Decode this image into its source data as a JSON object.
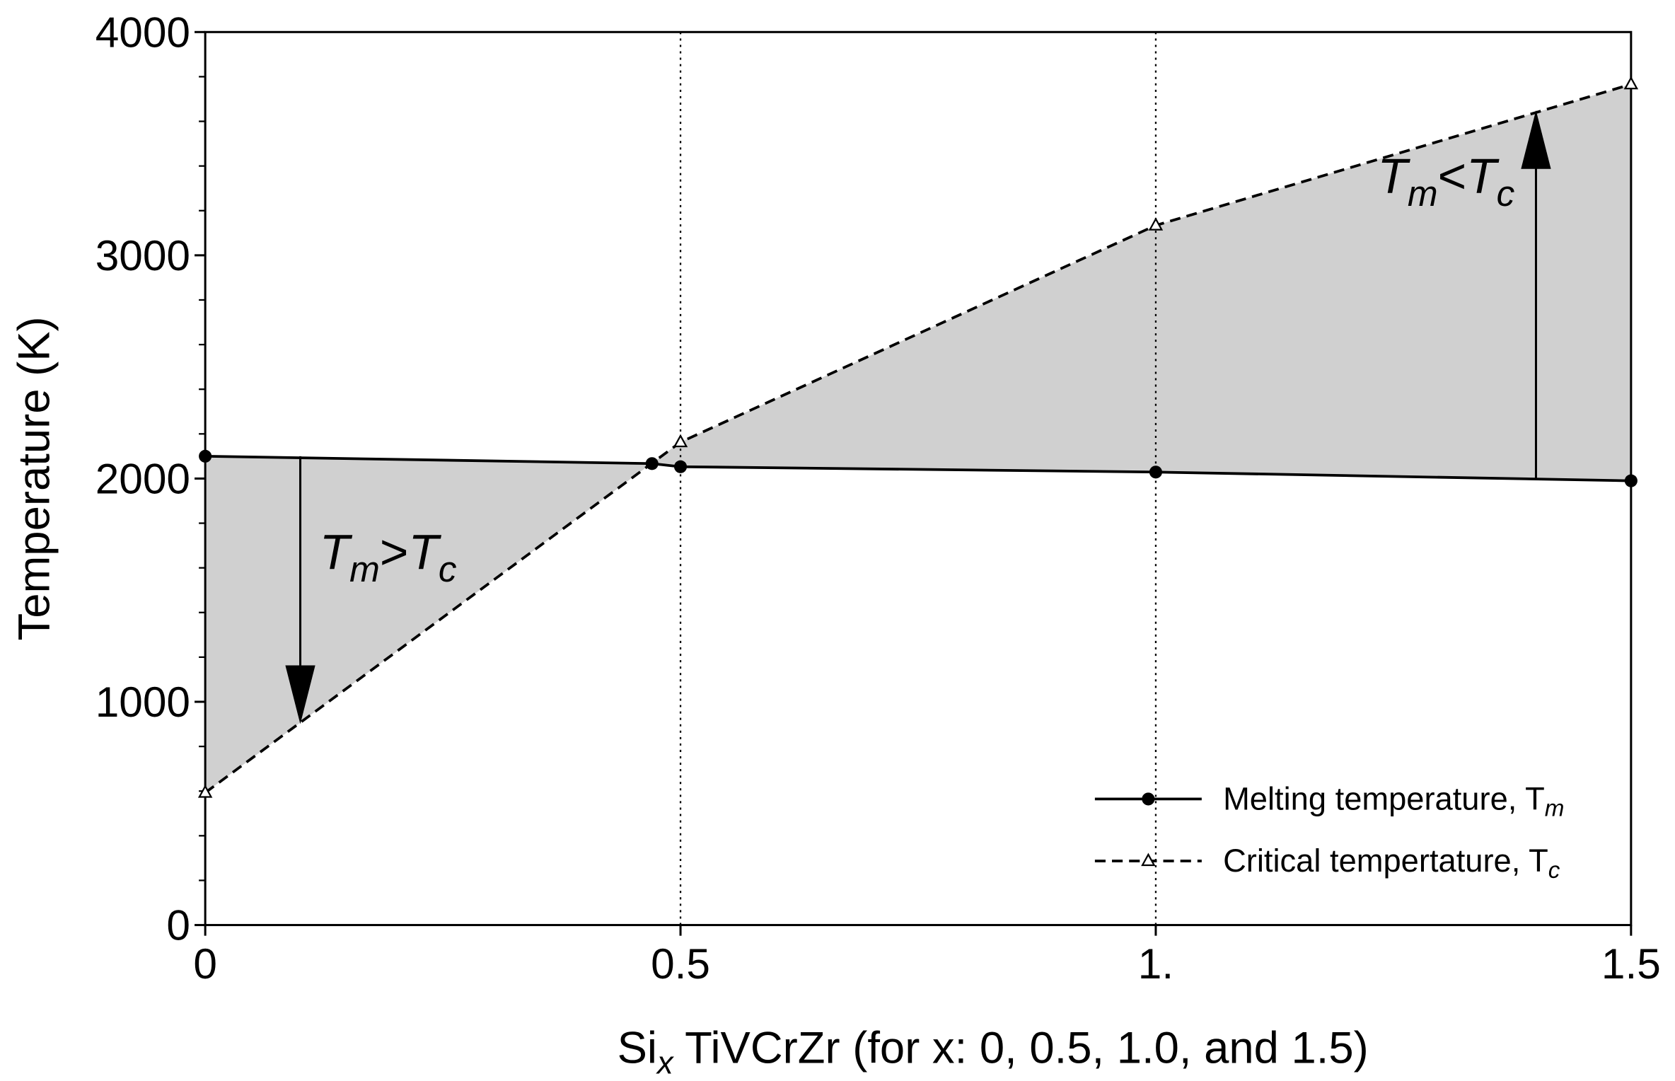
{
  "chart_data": {
    "type": "line",
    "xlabel": [
      "Si",
      "x",
      " TiVCrZr (for x: 0, 0.5, 1.0, and 1.5)"
    ],
    "ylabel": "Temperature (K)",
    "xlim": [
      0,
      1.5
    ],
    "ylim": [
      0,
      4000
    ],
    "xticks": [
      0,
      0.5,
      {
        "value": 1.0,
        "label": "1."
      },
      1.5
    ],
    "yticks": [
      0,
      1000,
      2000,
      3000,
      4000
    ],
    "vlines": [
      0.5,
      1.0
    ],
    "legend": "lower right",
    "fill_between": true,
    "series": [
      {
        "name": [
          "Melting temperature, T",
          "m"
        ],
        "color": "#000000",
        "style": "solid",
        "marker": "circle",
        "x": [
          0,
          0.47,
          0.5,
          1.0,
          1.5
        ],
        "values": [
          2100,
          2067,
          2053,
          2029,
          1990
        ]
      },
      {
        "name": [
          "Critical tempertature, T",
          "c"
        ],
        "color": "#000000",
        "style": "dashed",
        "marker": "triangle",
        "x": [
          0,
          0.5,
          1.0,
          1.5
        ],
        "values": [
          593,
          2163,
          3134,
          3766
        ]
      }
    ],
    "annotations": [
      {
        "text": [
          "T",
          "m",
          ">",
          "T",
          "c"
        ],
        "x": 0.1,
        "from": 2100,
        "to": 900
      },
      {
        "text": [
          "T",
          "m",
          "<",
          "T",
          "c"
        ],
        "x": 1.4,
        "from": 2000,
        "to": 3650
      }
    ]
  }
}
